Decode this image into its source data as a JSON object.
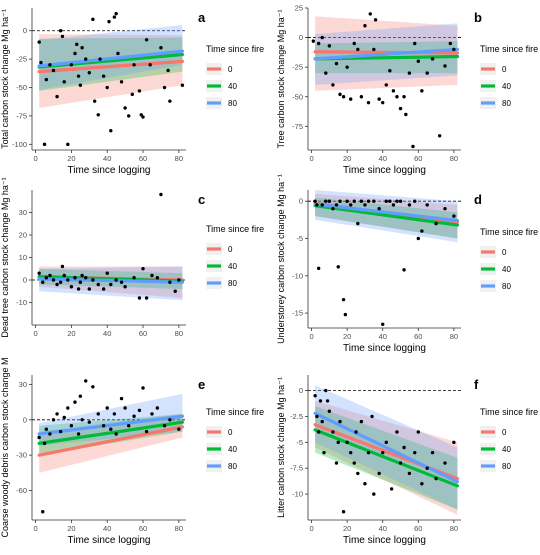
{
  "colors": {
    "0": "#f8766d",
    "40": "#00ba38",
    "80": "#619cff"
  },
  "legend": {
    "title": "Time since fire",
    "labels": [
      "0",
      "40",
      "80"
    ]
  },
  "chart_data": [
    {
      "panel": "a",
      "type": "scatter",
      "xlabel": "Time since logging",
      "ylabel": "Total carbon stock change Mg ha⁻¹",
      "xlim": [
        -2,
        84
      ],
      "ylim": [
        -105,
        20
      ],
      "xticks": [
        0,
        20,
        40,
        60,
        80
      ],
      "yticks": [
        -100,
        -75,
        -50,
        -25,
        0
      ],
      "lines": {
        "0": [
          -36,
          -27
        ],
        "40": [
          -32,
          -21
        ],
        "80": [
          -31,
          -18
        ]
      },
      "bands": {
        "0": [
          [
            -68,
            -3
          ],
          [
            -48,
            -4
          ]
        ],
        "40": [
          [
            -53,
            -7
          ],
          [
            -36,
            -6
          ]
        ],
        "80": [
          [
            -52,
            -8
          ],
          [
            -30,
            5
          ]
        ]
      },
      "points": [
        [
          2,
          -10
        ],
        [
          3,
          -28
        ],
        [
          5,
          -100
        ],
        [
          6,
          -43
        ],
        [
          8,
          -30
        ],
        [
          10,
          -35
        ],
        [
          12,
          -58
        ],
        [
          14,
          0
        ],
        [
          15,
          -5
        ],
        [
          16,
          -45
        ],
        [
          18,
          -100
        ],
        [
          20,
          -30
        ],
        [
          22,
          -20
        ],
        [
          23,
          -12
        ],
        [
          24,
          -40
        ],
        [
          25,
          -48
        ],
        [
          26,
          -15
        ],
        [
          28,
          -25
        ],
        [
          30,
          -37
        ],
        [
          32,
          10
        ],
        [
          33,
          -62
        ],
        [
          35,
          -74
        ],
        [
          36,
          -25
        ],
        [
          38,
          -40
        ],
        [
          40,
          -50
        ],
        [
          41,
          8
        ],
        [
          42,
          -88
        ],
        [
          44,
          12
        ],
        [
          45,
          15
        ],
        [
          46,
          -20
        ],
        [
          48,
          -45
        ],
        [
          50,
          -68
        ],
        [
          52,
          -75
        ],
        [
          54,
          -56
        ],
        [
          55,
          -30
        ],
        [
          58,
          -53
        ],
        [
          59,
          -74
        ],
        [
          60,
          -76
        ],
        [
          62,
          -8
        ],
        [
          64,
          -30
        ],
        [
          70,
          -15
        ],
        [
          72,
          -50
        ],
        [
          74,
          -35
        ],
        [
          75,
          -62
        ],
        [
          82,
          -48
        ]
      ]
    },
    {
      "panel": "b",
      "type": "scatter",
      "xlabel": "Time since logging",
      "ylabel": "Tree carbon stock change Mg ha⁻¹",
      "xlim": [
        -2,
        84
      ],
      "ylim": [
        -95,
        25
      ],
      "xticks": [
        0,
        20,
        40,
        60,
        80
      ],
      "yticks": [
        -75,
        -50,
        -25,
        0,
        25
      ],
      "lines": {
        "0": [
          -12,
          -13
        ],
        "40": [
          -18,
          -16
        ],
        "80": [
          -18,
          -10
        ]
      },
      "bands": {
        "0": [
          [
            -45,
            18
          ],
          [
            -40,
            10
          ]
        ],
        "40": [
          [
            -30,
            -5
          ],
          [
            -30,
            -3
          ]
        ],
        "80": [
          [
            -40,
            3
          ],
          [
            -32,
            12
          ]
        ]
      },
      "points": [
        [
          1,
          -3
        ],
        [
          4,
          -5
        ],
        [
          6,
          0
        ],
        [
          8,
          -30
        ],
        [
          10,
          -7
        ],
        [
          12,
          -40
        ],
        [
          14,
          -22
        ],
        [
          16,
          -48
        ],
        [
          18,
          -50
        ],
        [
          20,
          -25
        ],
        [
          22,
          -52
        ],
        [
          24,
          -5
        ],
        [
          26,
          -10
        ],
        [
          28,
          -50
        ],
        [
          30,
          10
        ],
        [
          32,
          -55
        ],
        [
          33,
          20
        ],
        [
          35,
          -10
        ],
        [
          36,
          15
        ],
        [
          38,
          -52
        ],
        [
          40,
          -55
        ],
        [
          42,
          -40
        ],
        [
          44,
          -28
        ],
        [
          46,
          -45
        ],
        [
          48,
          -50
        ],
        [
          50,
          -60
        ],
        [
          52,
          -50
        ],
        [
          53,
          -65
        ],
        [
          55,
          -30
        ],
        [
          57,
          -92
        ],
        [
          58,
          -5
        ],
        [
          60,
          -20
        ],
        [
          62,
          -45
        ],
        [
          65,
          -30
        ],
        [
          68,
          -18
        ],
        [
          72,
          -83
        ],
        [
          75,
          -24
        ],
        [
          78,
          -5
        ],
        [
          80,
          -10
        ]
      ]
    },
    {
      "panel": "c",
      "type": "scatter",
      "xlabel": "",
      "ylabel": "Dead tree carbon stock change Mg ha⁻¹",
      "xlim": [
        -2,
        84
      ],
      "ylim": [
        -20,
        40
      ],
      "xticks": [
        0,
        20,
        40,
        60,
        80
      ],
      "yticks": [
        -10,
        0,
        10,
        20,
        30
      ],
      "lines": {
        "0": [
          1.5,
          0
        ],
        "40": [
          1.5,
          -0.5
        ],
        "80": [
          0.5,
          -1
        ]
      },
      "bands": {
        "0": [
          [
            -3,
            6
          ],
          [
            -8,
            6
          ]
        ],
        "40": [
          [
            -2,
            5
          ],
          [
            -4,
            3
          ]
        ],
        "80": [
          [
            -5,
            5
          ],
          [
            -9,
            6
          ]
        ]
      },
      "points": [
        [
          2,
          3
        ],
        [
          4,
          -1
        ],
        [
          6,
          1
        ],
        [
          8,
          2
        ],
        [
          10,
          0
        ],
        [
          12,
          -2
        ],
        [
          14,
          -1
        ],
        [
          15,
          6
        ],
        [
          16,
          2
        ],
        [
          18,
          0
        ],
        [
          20,
          -3
        ],
        [
          22,
          1
        ],
        [
          24,
          -4
        ],
        [
          25,
          -1
        ],
        [
          26,
          2
        ],
        [
          28,
          1
        ],
        [
          30,
          -4
        ],
        [
          32,
          0
        ],
        [
          35,
          -2
        ],
        [
          38,
          -4
        ],
        [
          40,
          3
        ],
        [
          42,
          -2
        ],
        [
          45,
          0
        ],
        [
          48,
          -1
        ],
        [
          50,
          -3
        ],
        [
          55,
          1
        ],
        [
          58,
          -8
        ],
        [
          60,
          5
        ],
        [
          62,
          -8
        ],
        [
          65,
          2
        ],
        [
          68,
          1
        ],
        [
          70,
          38
        ],
        [
          75,
          -1
        ],
        [
          78,
          -5
        ],
        [
          80,
          0
        ]
      ]
    },
    {
      "panel": "d",
      "type": "scatter",
      "xlabel": "Time since logging",
      "ylabel": "Understorey carbon stock change Mg ha⁻¹",
      "xlim": [
        -2,
        84
      ],
      "ylim": [
        -17,
        1.5
      ],
      "xticks": [
        0,
        20,
        40,
        60,
        80
      ],
      "yticks": [
        -15,
        -10,
        -5,
        0
      ],
      "lines": {
        "0": [
          -0.3,
          -2.8
        ],
        "40": [
          -0.6,
          -3.2
        ],
        "80": [
          -0.4,
          -2.6
        ]
      },
      "bands": {
        "0": [
          [
            -2,
            1
          ],
          [
            -5,
            -0.5
          ]
        ],
        "40": [
          [
            -2,
            0.5
          ],
          [
            -5,
            -1.5
          ]
        ],
        "80": [
          [
            -2.5,
            1.5
          ],
          [
            -5.5,
            0
          ]
        ]
      },
      "points": [
        [
          2,
          0
        ],
        [
          3,
          -0.5
        ],
        [
          4,
          -9
        ],
        [
          6,
          -0.5
        ],
        [
          8,
          0
        ],
        [
          10,
          0
        ],
        [
          12,
          -1
        ],
        [
          14,
          -0.5
        ],
        [
          15,
          -8.8
        ],
        [
          16,
          0
        ],
        [
          18,
          -13.2
        ],
        [
          19,
          -15.2
        ],
        [
          20,
          0
        ],
        [
          22,
          -0.5
        ],
        [
          24,
          0
        ],
        [
          26,
          -3
        ],
        [
          28,
          0
        ],
        [
          30,
          -0.5
        ],
        [
          32,
          0
        ],
        [
          35,
          0
        ],
        [
          38,
          -1
        ],
        [
          40,
          -16.5
        ],
        [
          42,
          0
        ],
        [
          44,
          0
        ],
        [
          46,
          -0.5
        ],
        [
          48,
          0
        ],
        [
          50,
          0
        ],
        [
          52,
          -9.2
        ],
        [
          55,
          -0.5
        ],
        [
          58,
          0
        ],
        [
          60,
          -5
        ],
        [
          62,
          -4
        ],
        [
          65,
          -0.5
        ],
        [
          70,
          -3
        ],
        [
          75,
          -1
        ],
        [
          80,
          -2
        ]
      ]
    },
    {
      "panel": "e",
      "type": "scatter",
      "xlabel": "Time since logging",
      "ylabel": "Coarse woody debris carbon stock change M",
      "xlim": [
        -2,
        84
      ],
      "ylim": [
        -85,
        38
      ],
      "xticks": [
        0,
        20,
        40,
        60,
        80
      ],
      "yticks": [
        -60,
        -30,
        0,
        30
      ],
      "lines": {
        "0": [
          -30,
          -6
        ],
        "40": [
          -20,
          -2
        ],
        "80": [
          -12,
          3
        ]
      },
      "bands": {
        "0": [
          [
            -45,
            -10
          ],
          [
            -15,
            5
          ]
        ],
        "40": [
          [
            -30,
            -5
          ],
          [
            -10,
            5
          ]
        ],
        "80": [
          [
            -22,
            -3
          ],
          [
            -10,
            22
          ]
        ]
      },
      "points": [
        [
          2,
          -15
        ],
        [
          4,
          -78
        ],
        [
          5,
          -20
        ],
        [
          6,
          -8
        ],
        [
          8,
          -12
        ],
        [
          10,
          0
        ],
        [
          12,
          5
        ],
        [
          14,
          -10
        ],
        [
          16,
          2
        ],
        [
          18,
          10
        ],
        [
          20,
          -5
        ],
        [
          22,
          15
        ],
        [
          24,
          -12
        ],
        [
          25,
          20
        ],
        [
          26,
          0
        ],
        [
          28,
          33
        ],
        [
          30,
          -2
        ],
        [
          32,
          28
        ],
        [
          35,
          5
        ],
        [
          38,
          -5
        ],
        [
          40,
          10
        ],
        [
          42,
          -8
        ],
        [
          44,
          5
        ],
        [
          45,
          -12
        ],
        [
          48,
          18
        ],
        [
          50,
          10
        ],
        [
          52,
          -5
        ],
        [
          55,
          3
        ],
        [
          58,
          8
        ],
        [
          60,
          27
        ],
        [
          62,
          -10
        ],
        [
          65,
          5
        ],
        [
          68,
          10
        ],
        [
          72,
          -5
        ],
        [
          75,
          0
        ],
        [
          80,
          -8
        ]
      ]
    },
    {
      "panel": "f",
      "type": "scatter",
      "xlabel": "Time since logging",
      "ylabel": "Litter carbon stock change Mg ha⁻¹",
      "xlim": [
        -2,
        84
      ],
      "ylim": [
        -12.5,
        1.5
      ],
      "xticks": [
        0,
        20,
        40,
        60,
        80
      ],
      "yticks": [
        -10.0,
        -7.5,
        -5.0,
        -2.5,
        0.0
      ],
      "lines": {
        "0": [
          -3.3,
          -8.5
        ],
        "40": [
          -3.8,
          -9.2
        ],
        "80": [
          -2.2,
          -8.8
        ]
      },
      "bands": {
        "0": [
          [
            -5.5,
            -1
          ],
          [
            -12,
            -5
          ]
        ],
        "40": [
          [
            -6,
            -1.5
          ],
          [
            -11.5,
            -6.5
          ]
        ],
        "80": [
          [
            -5,
            0.5
          ],
          [
            -11.5,
            -5.5
          ]
        ]
      },
      "points": [
        [
          2,
          -0.5
        ],
        [
          3,
          -2.5
        ],
        [
          4,
          -4
        ],
        [
          5,
          -1
        ],
        [
          6,
          -3
        ],
        [
          7,
          -6
        ],
        [
          8,
          0
        ],
        [
          9,
          -1
        ],
        [
          10,
          -2
        ],
        [
          12,
          -4
        ],
        [
          14,
          -7
        ],
        [
          15,
          -5
        ],
        [
          16,
          -3
        ],
        [
          18,
          -11.7
        ],
        [
          20,
          -5
        ],
        [
          22,
          -6
        ],
        [
          24,
          -7
        ],
        [
          25,
          -4
        ],
        [
          26,
          -8
        ],
        [
          28,
          -3
        ],
        [
          30,
          -9
        ],
        [
          32,
          -6
        ],
        [
          34,
          -2.5
        ],
        [
          35,
          -10
        ],
        [
          38,
          -8
        ],
        [
          40,
          -6
        ],
        [
          42,
          -5
        ],
        [
          45,
          -9.5
        ],
        [
          48,
          -4
        ],
        [
          50,
          -7
        ],
        [
          52,
          -5.5
        ],
        [
          55,
          -8
        ],
        [
          58,
          -6
        ],
        [
          60,
          -4
        ],
        [
          62,
          -9
        ],
        [
          65,
          -7.5
        ],
        [
          68,
          -6
        ],
        [
          70,
          -8.5
        ],
        [
          75,
          -7
        ],
        [
          80,
          -5
        ]
      ]
    }
  ]
}
